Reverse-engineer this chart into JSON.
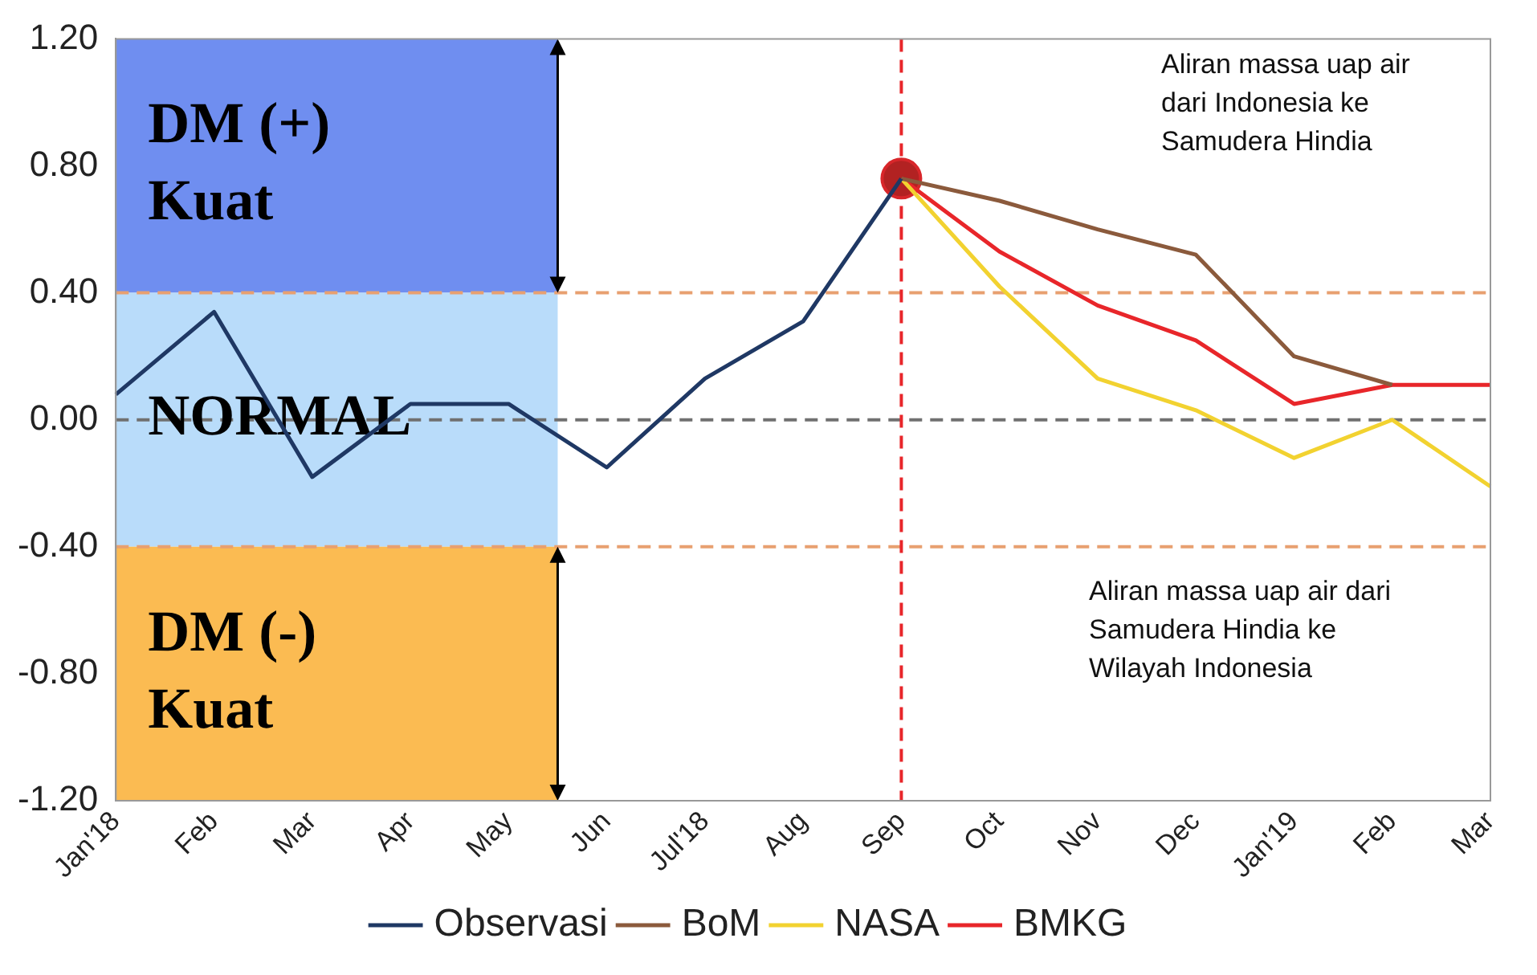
{
  "chart_data": {
    "type": "line",
    "categories": [
      "Jan'18",
      "Feb",
      "Mar",
      "Apr",
      "May",
      "Jun",
      "Jul'18",
      "Aug",
      "Sep",
      "Oct",
      "Nov",
      "Dec",
      "Jan'19",
      "Feb",
      "Mar"
    ],
    "series": [
      {
        "name": "Observasi",
        "color": "#1f3864",
        "values": [
          0.08,
          0.34,
          -0.18,
          0.05,
          0.05,
          -0.15,
          0.13,
          0.31,
          0.76,
          null,
          null,
          null,
          null,
          null,
          null
        ]
      },
      {
        "name": "BoM",
        "color": "#8b5a3c",
        "values": [
          null,
          null,
          null,
          null,
          null,
          null,
          null,
          null,
          0.76,
          0.69,
          0.6,
          0.52,
          0.2,
          0.11,
          null
        ]
      },
      {
        "name": "NASA",
        "color": "#f2d230",
        "values": [
          null,
          null,
          null,
          null,
          null,
          null,
          null,
          null,
          0.76,
          0.42,
          0.13,
          0.03,
          -0.12,
          0.0,
          -0.21
        ]
      },
      {
        "name": "BMKG",
        "color": "#e8262a",
        "values": [
          null,
          null,
          null,
          null,
          null,
          null,
          null,
          null,
          0.76,
          0.53,
          0.36,
          0.25,
          0.05,
          0.11,
          0.11
        ]
      },
      {
        "type": "scatter",
        "x": [
          "Sep"
        ],
        "values": [
          0.76
        ],
        "color": "#b22222",
        "marker": "circle"
      }
    ],
    "ylim": [
      -1.2,
      1.2
    ],
    "yticks": [
      {
        "value": -1.2,
        "label": "-1.20"
      },
      {
        "value": -0.8,
        "label": "-0.80"
      },
      {
        "value": -0.4,
        "label": "-0.40"
      },
      {
        "value": 0,
        "label": "0.00"
      },
      {
        "value": 0.4,
        "label": "0.40"
      },
      {
        "value": 0.8,
        "label": "0.80"
      },
      {
        "value": 1.2,
        "label": "1.20"
      }
    ],
    "grid": false,
    "legend": "bottom",
    "bands": [
      {
        "axis": "y",
        "from": 0.4,
        "to": 1.2,
        "label": "DM (+)\nKuat",
        "color": "#6f8ef0"
      },
      {
        "axis": "y",
        "from": -0.4,
        "to": 0.4,
        "label": "NORMAL",
        "color": "#b9dcfa"
      },
      {
        "axis": "y",
        "from": -1.2,
        "to": -0.4,
        "label": "DM (-)\nKuat",
        "color": "#fbbb52"
      }
    ],
    "ref_lines": [
      {
        "axis": "y",
        "value": 0.4,
        "color": "#e8a070",
        "line_style": "dashed"
      },
      {
        "axis": "y",
        "value": -0.4,
        "color": "#e8a070",
        "line_style": "dashed"
      },
      {
        "axis": "y",
        "value": 0,
        "color": "#707070",
        "line_style": "dashed"
      },
      {
        "axis": "x",
        "value": "Sep",
        "color": "#e8262a",
        "line_style": "dashed"
      }
    ],
    "annotations": [
      "Aliran massa uap air\ndari Indonesia ke\nSamudera Hindia",
      "Aliran massa uap air dari\nSamudera Hindia ke\nWilayah Indonesia"
    ]
  }
}
